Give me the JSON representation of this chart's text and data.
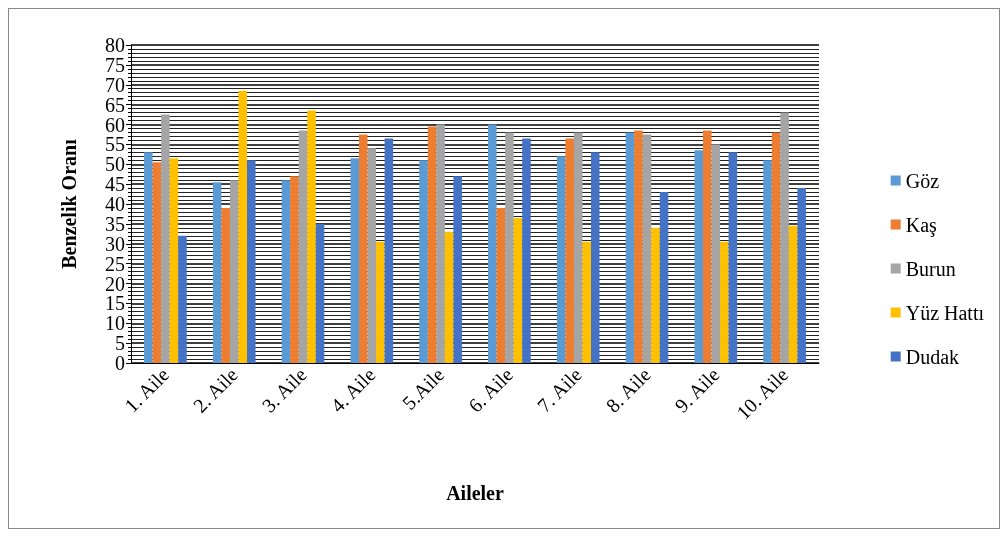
{
  "chart_data": {
    "type": "bar",
    "xlabel": "Aileler",
    "ylabel": "Benzelik Oranı",
    "categories": [
      "1. Aile",
      "2. Aile",
      "3. Aile",
      "4. Aile",
      "5.Aile",
      "6. Aile",
      "7. Aile",
      "8. Aile",
      "9. Aile",
      "10. Aile"
    ],
    "series": [
      {
        "name": "Göz",
        "color": "#5b9bd5",
        "values": [
          53,
          45.5,
          46,
          51.5,
          51,
          60,
          52,
          58,
          53.5,
          51
        ]
      },
      {
        "name": "Kaş",
        "color": "#ed7d31",
        "values": [
          50.5,
          39,
          47,
          57.5,
          59.5,
          39,
          56.5,
          58.5,
          58.5,
          58
        ]
      },
      {
        "name": "Burun",
        "color": "#a5a5a5",
        "values": [
          62.5,
          46,
          58.5,
          54,
          60,
          58,
          58,
          57.5,
          55,
          63
        ]
      },
      {
        "name": "Yüz Hattı",
        "color": "#ffc000",
        "values": [
          51.5,
          68.5,
          63.5,
          30.5,
          33,
          36.5,
          30.5,
          34,
          30.5,
          34.5
        ]
      },
      {
        "name": "Dudak",
        "color": "#4472c4",
        "values": [
          32,
          51,
          35,
          56.5,
          47,
          56.5,
          53,
          43,
          53,
          44
        ]
      }
    ],
    "ylim": [
      0,
      80
    ],
    "yticks": [
      0,
      5,
      10,
      15,
      20,
      25,
      30,
      35,
      40,
      45,
      50,
      55,
      60,
      65,
      70,
      75,
      80
    ],
    "grid": "y",
    "legend": "right"
  }
}
